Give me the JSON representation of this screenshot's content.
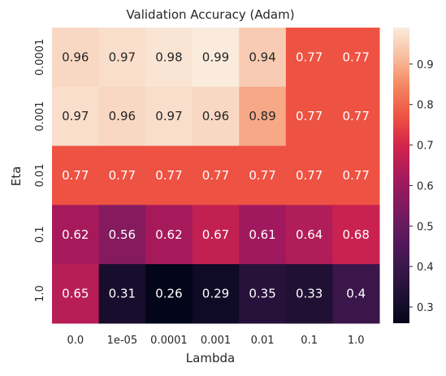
{
  "chart_data": {
    "type": "heatmap",
    "title": "Validation Accuracy (Adam)",
    "xlabel": "Lambda",
    "ylabel": "Eta",
    "x_categories": [
      "0.0",
      "1e-05",
      "0.0001",
      "0.001",
      "0.01",
      "0.1",
      "1.0"
    ],
    "y_categories": [
      "0.0001",
      "0.001",
      "0.01",
      "0.1",
      "1.0"
    ],
    "values": [
      [
        0.96,
        0.97,
        0.98,
        0.99,
        0.94,
        0.77,
        0.77
      ],
      [
        0.97,
        0.96,
        0.97,
        0.96,
        0.89,
        0.77,
        0.77
      ],
      [
        0.77,
        0.77,
        0.77,
        0.77,
        0.77,
        0.77,
        0.77
      ],
      [
        0.62,
        0.56,
        0.62,
        0.67,
        0.61,
        0.64,
        0.68
      ],
      [
        0.65,
        0.31,
        0.26,
        0.29,
        0.35,
        0.33,
        0.4
      ]
    ],
    "cell_labels": [
      [
        "0.96",
        "0.97",
        "0.98",
        "0.99",
        "0.94",
        "0.77",
        "0.77"
      ],
      [
        "0.97",
        "0.96",
        "0.97",
        "0.96",
        "0.89",
        "0.77",
        "0.77"
      ],
      [
        "0.77",
        "0.77",
        "0.77",
        "0.77",
        "0.77",
        "0.77",
        "0.77"
      ],
      [
        "0.62",
        "0.56",
        "0.62",
        "0.67",
        "0.61",
        "0.64",
        "0.68"
      ],
      [
        "0.65",
        "0.31",
        "0.26",
        "0.29",
        "0.35",
        "0.33",
        "0.4"
      ]
    ],
    "colormap": "rocket",
    "colorbar": {
      "range": [
        0.26,
        0.99
      ],
      "ticks": [
        0.3,
        0.4,
        0.5,
        0.6,
        0.7,
        0.8,
        0.9
      ],
      "tick_labels": [
        "0.3",
        "0.4",
        "0.5",
        "0.6",
        "0.7",
        "0.8",
        "0.9"
      ]
    },
    "grid": false
  }
}
